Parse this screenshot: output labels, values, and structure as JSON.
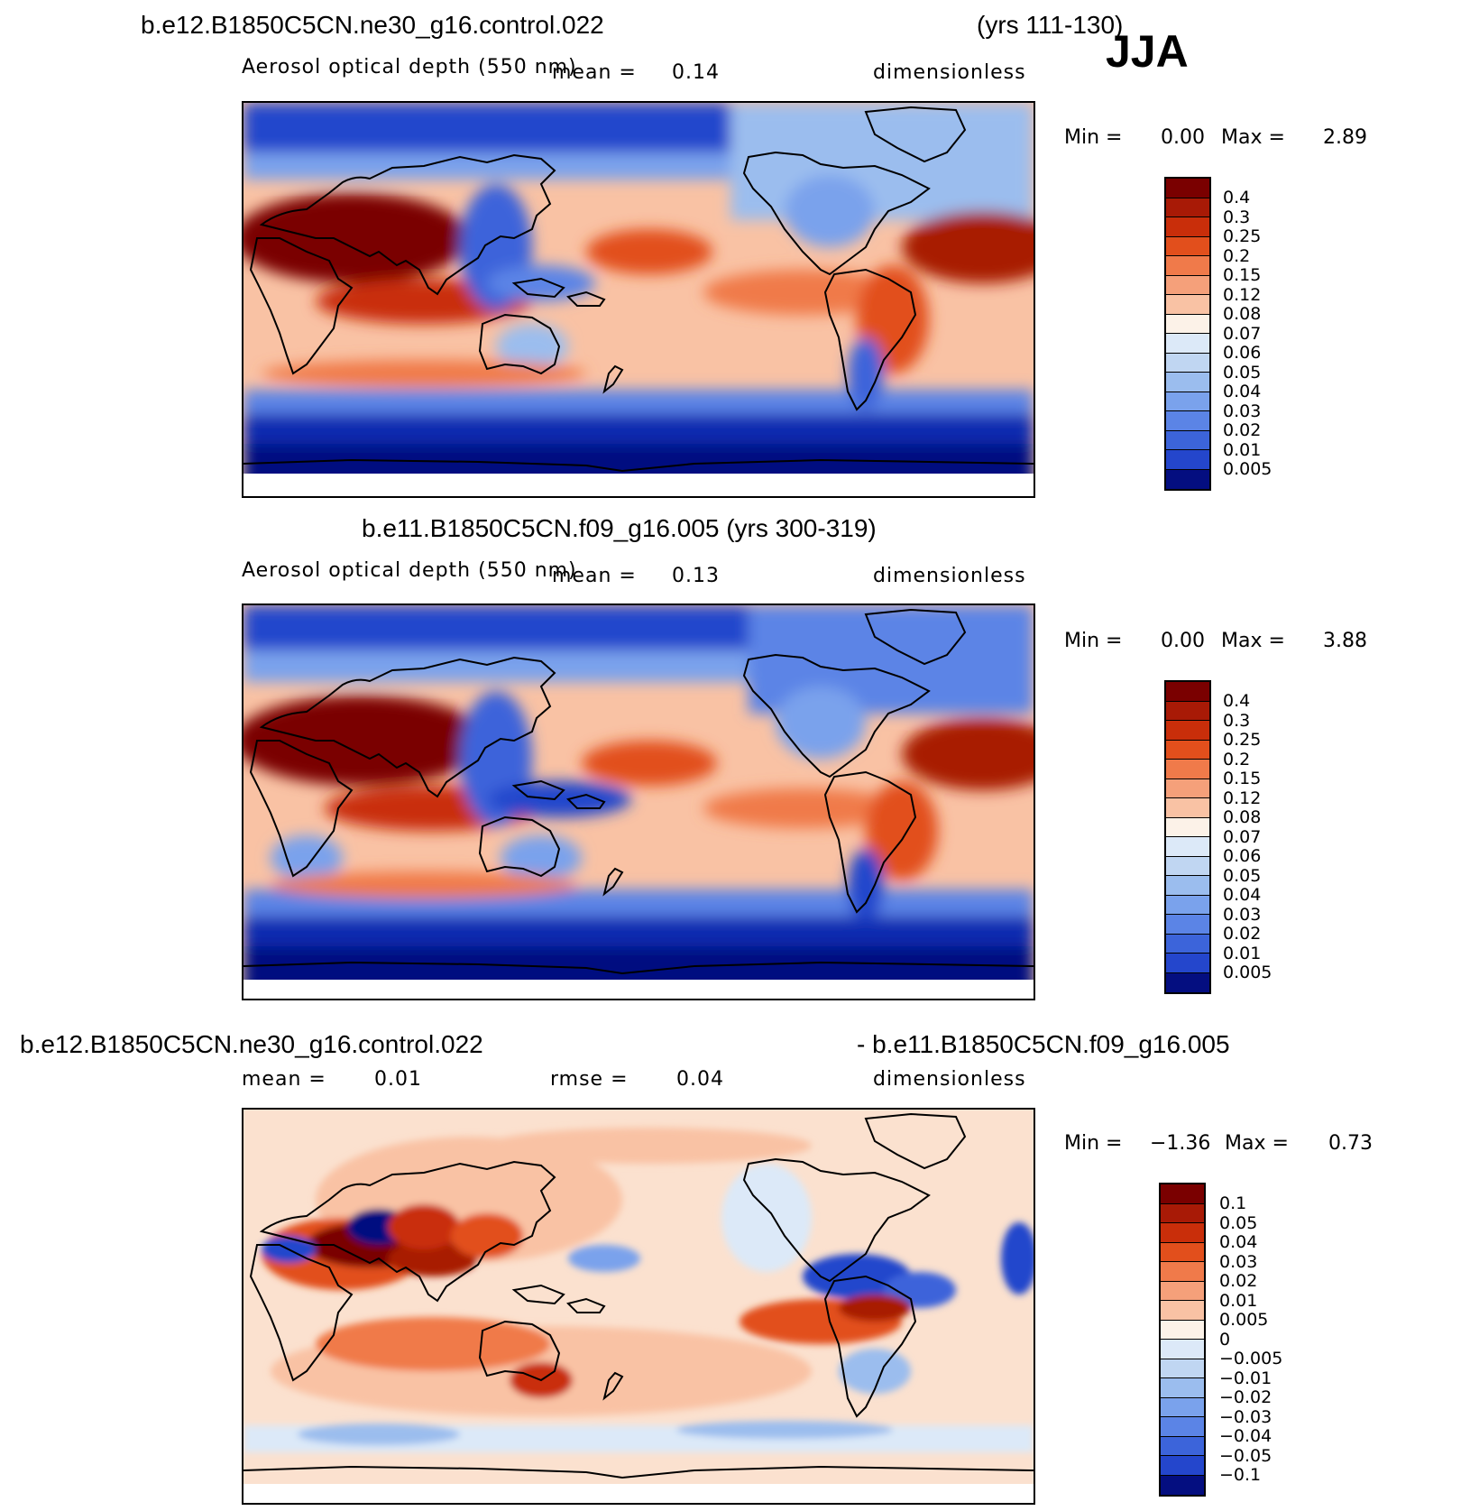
{
  "season": "JJA",
  "colors": {
    "red": [
      "#7a0000",
      "#a81a06",
      "#c92e0a",
      "#e24f1c",
      "#f07a4a",
      "#f5a07a",
      "#f9c2a4",
      "#fbe1cf",
      "#fcf2e8"
    ],
    "blue": [
      "#dce9f8",
      "#c0d6f2",
      "#9bbdee",
      "#7aa2ec",
      "#5b84e6",
      "#3c64da",
      "#2446cc",
      "#1029b0",
      "#040e80"
    ]
  },
  "panels": [
    {
      "title_left": "b.e12.B1850C5CN.ne30_g16.control.022",
      "title_right": "(yrs 111-130)",
      "variable": "Aerosol optical depth (550 nm)",
      "mean_label": "mean =",
      "mean_value": "0.14",
      "units": "dimensionless",
      "min_label": "Min =",
      "min_value": "0.00",
      "max_label": "Max =",
      "max_value": "2.89",
      "colorbar_labels": [
        "0.4",
        "0.3",
        "0.25",
        "0.2",
        "0.15",
        "0.12",
        "0.08",
        "0.07",
        "0.06",
        "0.05",
        "0.04",
        "0.03",
        "0.02",
        "0.01",
        "0.005"
      ]
    },
    {
      "title_center": "b.e11.B1850C5CN.f09_g16.005 (yrs 300-319)",
      "variable": "Aerosol optical depth (550 nm)",
      "mean_label": "mean =",
      "mean_value": "0.13",
      "units": "dimensionless",
      "min_label": "Min =",
      "min_value": "0.00",
      "max_label": "Max =",
      "max_value": "3.88",
      "colorbar_labels": [
        "0.4",
        "0.3",
        "0.25",
        "0.2",
        "0.15",
        "0.12",
        "0.08",
        "0.07",
        "0.06",
        "0.05",
        "0.04",
        "0.03",
        "0.02",
        "0.01",
        "0.005"
      ]
    },
    {
      "title_left": "b.e12.B1850C5CN.ne30_g16.control.022",
      "title_right": "- b.e11.B1850C5CN.f09_g16.005",
      "mean_label": "mean =",
      "mean_value": "0.01",
      "rmse_label": "rmse =",
      "rmse_value": "0.04",
      "units": "dimensionless",
      "min_label": "Min =",
      "min_value": "−1.36",
      "max_label": "Max =",
      "max_value": "0.73",
      "colorbar_labels": [
        "0.1",
        "0.05",
        "0.04",
        "0.03",
        "0.02",
        "0.01",
        "0.005",
        "0",
        "−0.005",
        "−0.01",
        "−0.02",
        "−0.03",
        "−0.04",
        "−0.05",
        "−0.1"
      ]
    }
  ]
}
